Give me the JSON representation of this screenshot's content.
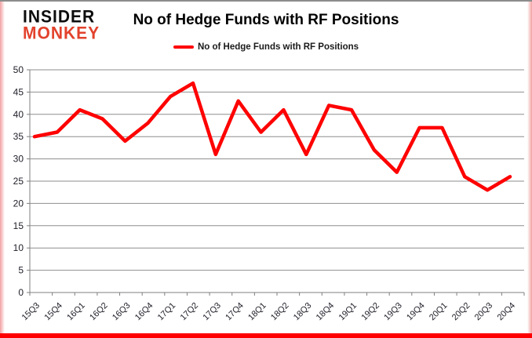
{
  "logo": {
    "line1": "INSIDER",
    "line2": "MONKEY"
  },
  "header": {
    "title": "No of Hedge Funds with RF Positions"
  },
  "legend": {
    "label": "No of Hedge Funds with RF Positions"
  },
  "chart_data": {
    "type": "line",
    "title": "No of Hedge Funds with RF Positions",
    "categories": [
      "15Q3",
      "15Q4",
      "16Q1",
      "16Q2",
      "16Q3",
      "16Q4",
      "17Q1",
      "17Q2",
      "17Q3",
      "17Q4",
      "18Q1",
      "18Q2",
      "18Q3",
      "18Q4",
      "19Q1",
      "19Q2",
      "19Q3",
      "19Q4",
      "20Q1",
      "20Q2",
      "20Q3",
      "20Q4"
    ],
    "series": [
      {
        "name": "No of Hedge Funds with RF Positions",
        "color": "#ff0000",
        "values": [
          35,
          36,
          41,
          39,
          34,
          38,
          44,
          47,
          31,
          43,
          36,
          41,
          31,
          42,
          41,
          32,
          27,
          37,
          37,
          26,
          23,
          26
        ]
      }
    ],
    "xlabel": "",
    "ylabel": "",
    "ylim": [
      0,
      50
    ],
    "ytick_step": 5,
    "grid": true,
    "legend_position": "top-center"
  },
  "colors": {
    "line": "#ff0000",
    "logo_accent": "#e2422d",
    "grid": "#8e8e8e",
    "axis": "#7f7f7f",
    "axis_text": "#21212b",
    "border_bottom": "#fe0000",
    "border_glow": "#f2a0a0",
    "border_top": "#8c8c8c"
  }
}
